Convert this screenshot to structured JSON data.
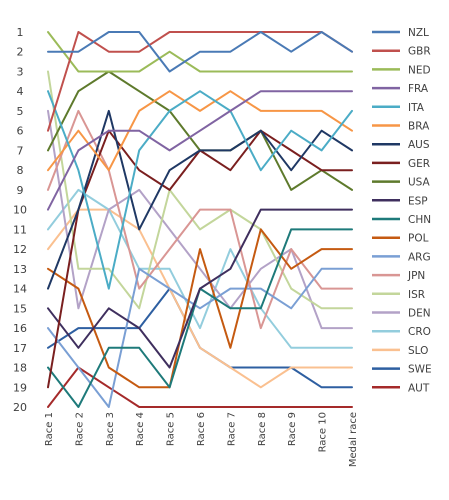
{
  "chart_data": {
    "type": "line",
    "categories": [
      "Race 1",
      "Race 2",
      "Race 3",
      "Race 4",
      "Race 5",
      "Race 6",
      "Race 7",
      "Race 8",
      "Race 9",
      "Race 10",
      "Medal race"
    ],
    "yticks": [
      1,
      2,
      3,
      4,
      5,
      6,
      7,
      8,
      9,
      10,
      11,
      12,
      13,
      14,
      15,
      16,
      17,
      18,
      19,
      20
    ],
    "ylim": [
      1,
      20
    ],
    "y_inverted": true,
    "grid": false,
    "legend_position": "right",
    "series": [
      {
        "name": "NZL",
        "color": "#4a7ab5",
        "values": [
          2,
          2,
          1,
          1,
          3,
          2,
          2,
          1,
          2,
          1,
          2
        ]
      },
      {
        "name": "GBR",
        "color": "#c0504d",
        "values": [
          6,
          1,
          2,
          2,
          1,
          1,
          1,
          1,
          1,
          1,
          2
        ]
      },
      {
        "name": "NED",
        "color": "#9bbb59",
        "values": [
          1,
          3,
          3,
          3,
          2,
          3,
          3,
          3,
          3,
          3,
          3
        ]
      },
      {
        "name": "FRA",
        "color": "#8064a2",
        "values": [
          10,
          7,
          6,
          6,
          7,
          6,
          5,
          4,
          4,
          4,
          4
        ]
      },
      {
        "name": "ITA",
        "color": "#4bacc6",
        "values": [
          4,
          8,
          14,
          7,
          5,
          4,
          5,
          8,
          6,
          7,
          5
        ]
      },
      {
        "name": "BRA",
        "color": "#f79646",
        "values": [
          8,
          6,
          8,
          5,
          4,
          5,
          4,
          5,
          5,
          5,
          6
        ]
      },
      {
        "name": "AUS",
        "color": "#1f3864",
        "values": [
          14,
          10,
          5,
          11,
          8,
          7,
          7,
          6,
          8,
          6,
          7
        ]
      },
      {
        "name": "GER",
        "color": "#7a1f1f",
        "values": [
          19,
          10,
          6,
          8,
          9,
          7,
          8,
          6,
          7,
          8,
          8
        ]
      },
      {
        "name": "USA",
        "color": "#5e7a2c",
        "values": [
          7,
          4,
          3,
          4,
          5,
          7,
          7,
          6,
          9,
          8,
          9
        ]
      },
      {
        "name": "ESP",
        "color": "#3f2f5e",
        "values": [
          15,
          17,
          15,
          16,
          18,
          14,
          13,
          10,
          10,
          10,
          10
        ]
      },
      {
        "name": "CHN",
        "color": "#1e7a7a",
        "values": [
          18,
          20,
          17,
          17,
          19,
          14,
          15,
          15,
          11,
          11,
          11
        ]
      },
      {
        "name": "POL",
        "color": "#c55a11",
        "values": [
          13,
          14,
          18,
          19,
          19,
          12,
          17,
          11,
          13,
          12,
          12
        ]
      },
      {
        "name": "ARG",
        "color": "#7a9fd4",
        "values": [
          16,
          18,
          20,
          13,
          14,
          15,
          14,
          14,
          15,
          13,
          13
        ]
      },
      {
        "name": "JPN",
        "color": "#d99694",
        "values": [
          9,
          5,
          8,
          14,
          12,
          10,
          10,
          16,
          12,
          14,
          14
        ]
      },
      {
        "name": "ISR",
        "color": "#c3d69b",
        "values": [
          3,
          13,
          13,
          15,
          9,
          11,
          10,
          11,
          14,
          15,
          15
        ]
      },
      {
        "name": "DEN",
        "color": "#b3a2c7",
        "values": [
          5,
          15,
          10,
          9,
          11,
          13,
          15,
          13,
          12,
          16,
          16
        ]
      },
      {
        "name": "CRO",
        "color": "#93cddd",
        "values": [
          11,
          9,
          10,
          13,
          13,
          16,
          12,
          15,
          17,
          17,
          17
        ]
      },
      {
        "name": "SLO",
        "color": "#fac090",
        "values": [
          12,
          10,
          10,
          11,
          14,
          17,
          18,
          19,
          18,
          18,
          18
        ]
      },
      {
        "name": "SWE",
        "color": "#2e5fa1",
        "values": [
          17,
          16,
          16,
          16,
          14,
          17,
          18,
          18,
          18,
          19,
          19
        ]
      },
      {
        "name": "AUT",
        "color": "#a52a2a",
        "values": [
          20,
          18,
          19,
          20,
          20,
          20,
          20,
          20,
          20,
          20,
          20
        ]
      }
    ]
  }
}
